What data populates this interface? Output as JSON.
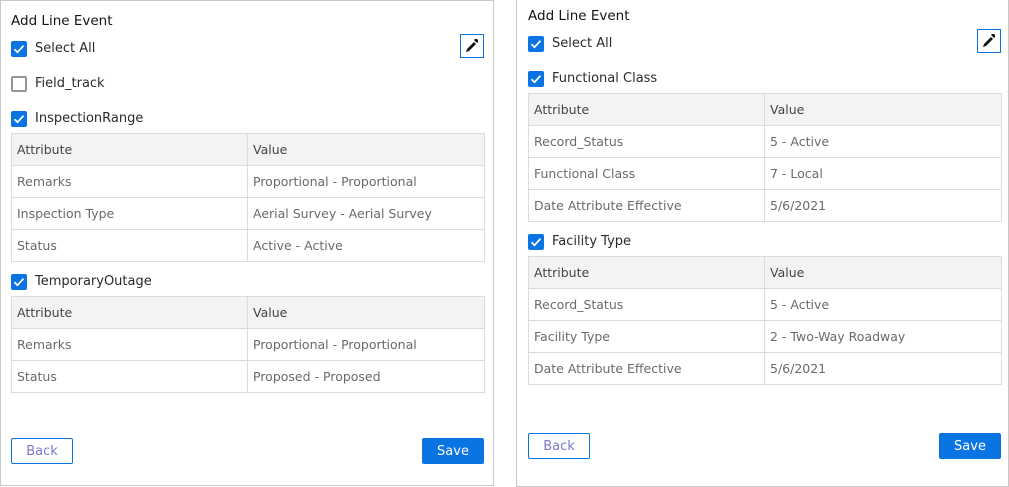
{
  "left": {
    "title": "Add Line Event",
    "select_all": "Select All",
    "groups": [
      {
        "label": "Field_track",
        "checked": false
      },
      {
        "label": "InspectionRange",
        "checked": true,
        "headers": [
          "Attribute",
          "Value"
        ],
        "rows": [
          [
            "Remarks",
            "Proportional - Proportional"
          ],
          [
            "Inspection Type",
            "Aerial Survey - Aerial Survey"
          ],
          [
            "Status",
            "Active - Active"
          ]
        ]
      },
      {
        "label": "TemporaryOutage",
        "checked": true,
        "headers": [
          "Attribute",
          "Value"
        ],
        "rows": [
          [
            "Remarks",
            "Proportional - Proportional"
          ],
          [
            "Status",
            "Proposed - Proposed"
          ]
        ]
      }
    ],
    "back": "Back",
    "save": "Save"
  },
  "right": {
    "title": "Add Line Event",
    "select_all": "Select All",
    "groups": [
      {
        "label": "Functional Class",
        "checked": true,
        "headers": [
          "Attribute",
          "Value"
        ],
        "rows": [
          [
            "Record_Status",
            "5 - Active"
          ],
          [
            "Functional Class",
            "7 - Local"
          ],
          [
            "Date Attribute Effective",
            "5/6/2021"
          ]
        ]
      },
      {
        "label": "Facility Type",
        "checked": true,
        "headers": [
          "Attribute",
          "Value"
        ],
        "rows": [
          [
            "Record_Status",
            "5 - Active"
          ],
          [
            "Facility Type",
            "2 - Two-Way Roadway"
          ],
          [
            "Date Attribute Effective",
            "5/6/2021"
          ]
        ]
      }
    ],
    "back": "Back",
    "save": "Save"
  },
  "colors": {
    "accent": "#0a74e3"
  },
  "icons": {
    "checkbox": "check-icon",
    "picker": "eyedropper-icon"
  }
}
